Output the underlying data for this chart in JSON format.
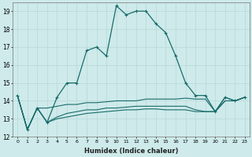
{
  "xlabel": "Humidex (Indice chaleur)",
  "ylabel": "",
  "xlim": [
    -0.5,
    23.5
  ],
  "ylim": [
    12,
    19.5
  ],
  "yticks": [
    12,
    13,
    14,
    15,
    16,
    17,
    18,
    19
  ],
  "xticks": [
    0,
    1,
    2,
    3,
    4,
    5,
    6,
    7,
    8,
    9,
    10,
    11,
    12,
    13,
    14,
    15,
    16,
    17,
    18,
    19,
    20,
    21,
    22,
    23
  ],
  "bg_color": "#ceeaea",
  "line_color": "#1a6b6b",
  "grid_color": "#b8d8d8",
  "line1_x": [
    0,
    1,
    2,
    3,
    4,
    5,
    6,
    7,
    8,
    9,
    10,
    11,
    12,
    13,
    14,
    15,
    16,
    17,
    18,
    19,
    20,
    21,
    22,
    23
  ],
  "line1_y": [
    14.3,
    12.4,
    13.6,
    12.8,
    14.2,
    15.0,
    15.0,
    16.8,
    17.0,
    16.5,
    19.3,
    18.8,
    19.0,
    19.0,
    18.3,
    17.8,
    16.5,
    15.0,
    14.3,
    14.3,
    13.4,
    14.2,
    14.0,
    14.2
  ],
  "line2_x": [
    0,
    1,
    2,
    3,
    4,
    5,
    6,
    7,
    8,
    9,
    10,
    11,
    12,
    13,
    14,
    15,
    16,
    17,
    18,
    19,
    20,
    21,
    22,
    23
  ],
  "line2_y": [
    14.3,
    12.4,
    13.6,
    13.6,
    13.7,
    13.8,
    13.8,
    13.9,
    13.9,
    13.95,
    14.0,
    14.0,
    14.0,
    14.1,
    14.1,
    14.1,
    14.1,
    14.15,
    14.1,
    14.1,
    13.4,
    14.2,
    14.0,
    14.2
  ],
  "line3_x": [
    0,
    1,
    2,
    3,
    4,
    5,
    6,
    7,
    8,
    9,
    10,
    11,
    12,
    13,
    14,
    15,
    16,
    17,
    18,
    19,
    20,
    21,
    22,
    23
  ],
  "line3_y": [
    14.3,
    12.4,
    13.6,
    12.8,
    13.1,
    13.3,
    13.4,
    13.5,
    13.5,
    13.6,
    13.6,
    13.65,
    13.7,
    13.7,
    13.7,
    13.7,
    13.7,
    13.7,
    13.5,
    13.4,
    13.4,
    14.0,
    14.0,
    14.2
  ],
  "line4_x": [
    0,
    1,
    2,
    3,
    4,
    5,
    6,
    7,
    8,
    9,
    10,
    11,
    12,
    13,
    14,
    15,
    16,
    17,
    18,
    19,
    20,
    21,
    22,
    23
  ],
  "line4_y": [
    14.3,
    12.4,
    13.6,
    12.8,
    13.0,
    13.1,
    13.2,
    13.3,
    13.35,
    13.4,
    13.45,
    13.5,
    13.5,
    13.55,
    13.55,
    13.5,
    13.5,
    13.5,
    13.4,
    13.4,
    13.4,
    14.0,
    14.0,
    14.2
  ]
}
